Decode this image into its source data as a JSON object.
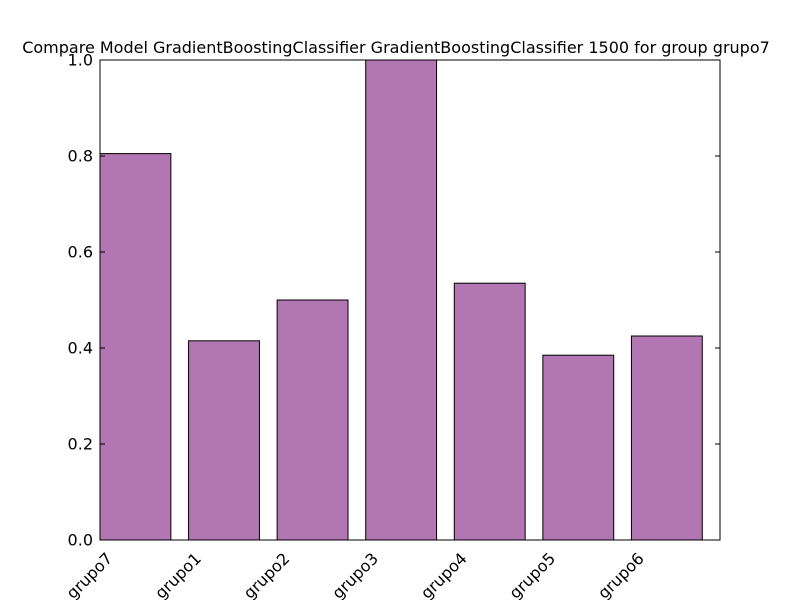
{
  "chart_data": {
    "type": "bar",
    "title": "Compare Model GradientBoostingClassifier GradientBoostingClassifier 1500 for group grupo7",
    "xlabel": "",
    "ylabel": "",
    "categories": [
      "grupo7",
      "grupo1",
      "grupo2",
      "grupo3",
      "grupo4",
      "grupo5",
      "grupo6"
    ],
    "values": [
      0.805,
      0.415,
      0.5,
      1.0,
      0.535,
      0.385,
      0.425
    ],
    "ylim": [
      0.0,
      1.0
    ],
    "yticks": [
      "0.0",
      "0.2",
      "0.4",
      "0.6",
      "0.8",
      "1.0"
    ],
    "grid": false,
    "legend": "none",
    "colors": {
      "bar_fill": "#b276b2",
      "bar_edge": "#000000",
      "axes": "#000000"
    }
  }
}
